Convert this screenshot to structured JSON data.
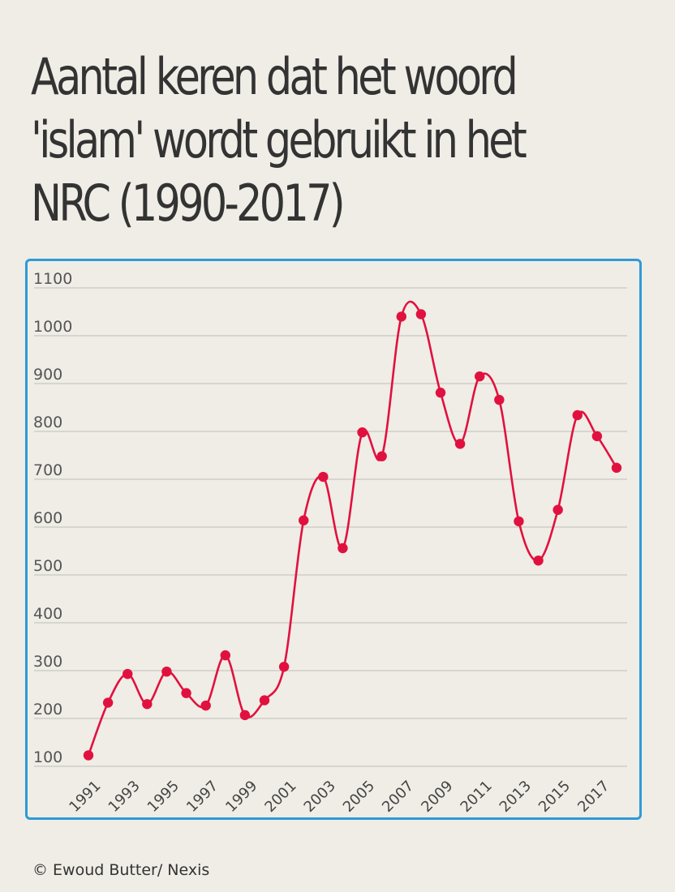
{
  "title": "Aantal keren dat het woord 'islam' wordt gebruikt in het NRC (1990-2017)",
  "source": "© Ewoud Butter/ Nexis",
  "colors": {
    "background": "#efede6",
    "frame": "#2f9ad6",
    "series": "#e1113f",
    "grid": "#c9c7c1",
    "text": "#333333"
  },
  "chart_data": {
    "type": "line",
    "title": "Aantal keren dat het woord 'islam' wordt gebruikt in het NRC (1990-2017)",
    "xlabel": "",
    "ylabel": "",
    "x": [
      1991,
      1992,
      1993,
      1994,
      1995,
      1996,
      1997,
      1998,
      1999,
      2000,
      2001,
      2002,
      2003,
      2004,
      2005,
      2006,
      2007,
      2008,
      2009,
      2010,
      2011,
      2012,
      2013,
      2014,
      2015,
      2016,
      2017,
      2018
    ],
    "y": [
      123,
      233,
      293,
      230,
      298,
      253,
      227,
      332,
      207,
      238,
      308,
      614,
      705,
      556,
      798,
      748,
      1040,
      1045,
      881,
      774,
      915,
      866,
      612,
      530,
      636,
      834,
      790,
      724
    ],
    "x_tick_labels": [
      "1991",
      "1993",
      "1995",
      "1997",
      "1999",
      "2001",
      "2003",
      "2005",
      "2007",
      "2009",
      "2011",
      "2013",
      "2015",
      "2017"
    ],
    "y_ticks": [
      100,
      200,
      300,
      400,
      500,
      600,
      700,
      800,
      900,
      1000,
      1100
    ],
    "ylim": [
      100,
      1100
    ],
    "grid": true,
    "legend": "none",
    "marker": "circle",
    "smooth": true
  }
}
